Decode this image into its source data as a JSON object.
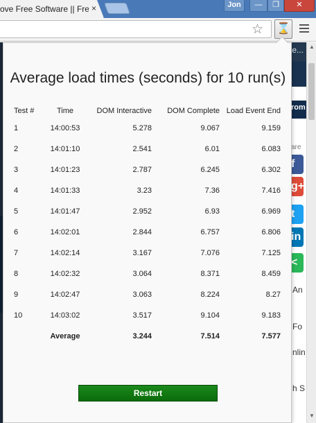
{
  "browser": {
    "tab_title": "ove Free Software || Free",
    "tab_close": "×",
    "user_name": "Jon",
    "window_buttons": {
      "minimize": "—",
      "maximize": "❐",
      "close": "✕"
    },
    "star_glyph": "☆",
    "extension_glyph": "⌛"
  },
  "background_page": {
    "header_text": "te...",
    "nav_text": "rom",
    "share_label": "are",
    "social_icons": [
      {
        "glyph": "f",
        "color": "#3b5998"
      },
      {
        "glyph": "g+",
        "color": "#dd4b39"
      },
      {
        "glyph": "t",
        "color": "#1da1f2"
      },
      {
        "glyph": "in",
        "color": "#0077b5"
      },
      {
        "glyph": "<",
        "color": "#2ab859"
      }
    ],
    "snippets": [
      "An",
      "Fo",
      "nlin",
      "h S"
    ]
  },
  "popup": {
    "heading": "Average load times (seconds) for 10 run(s)",
    "columns": [
      "Test #",
      "Time",
      "DOM Interactive",
      "DOM Complete",
      "Load Event End"
    ],
    "rows": [
      [
        "1",
        "14:00:53",
        "5.278",
        "9.067",
        "9.159"
      ],
      [
        "2",
        "14:01:10",
        "2.541",
        "6.01",
        "6.083"
      ],
      [
        "3",
        "14:01:23",
        "2.787",
        "6.245",
        "6.302"
      ],
      [
        "4",
        "14:01:33",
        "3.23",
        "7.36",
        "7.416"
      ],
      [
        "5",
        "14:01:47",
        "2.952",
        "6.93",
        "6.969"
      ],
      [
        "6",
        "14:02:01",
        "2.844",
        "6.757",
        "6.806"
      ],
      [
        "7",
        "14:02:14",
        "3.167",
        "7.076",
        "7.125"
      ],
      [
        "8",
        "14:02:32",
        "3.064",
        "8.371",
        "8.459"
      ],
      [
        "9",
        "14:02:47",
        "3.063",
        "8.224",
        "8.27"
      ],
      [
        "10",
        "14:03:02",
        "3.517",
        "9.104",
        "9.183"
      ]
    ],
    "average": {
      "label": "Average",
      "dom_interactive": "3.244",
      "dom_complete": "7.514",
      "load_event_end": "7.577"
    },
    "restart_label": "Restart",
    "accent_color": "#107c10"
  }
}
